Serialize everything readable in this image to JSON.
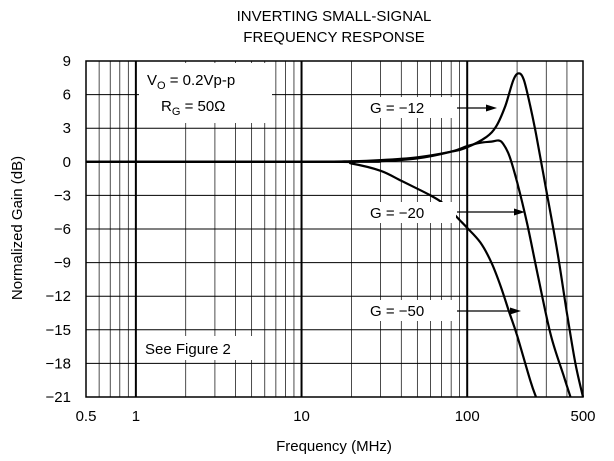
{
  "chart_data": {
    "type": "line",
    "title": [
      "INVERTING SMALL-SIGNAL",
      "FREQUENCY RESPONSE"
    ],
    "xlabel": "Frequency (MHz)",
    "ylabel": "Normalized Gain (dB)",
    "x_scale": "log",
    "xlim": [
      0.5,
      500
    ],
    "ylim": [
      -21,
      9
    ],
    "x_ticks": [
      0.5,
      1,
      10,
      100,
      500
    ],
    "x_tick_labels": [
      "0.5",
      "1",
      "10",
      "100",
      "500"
    ],
    "y_ticks": [
      9,
      6,
      3,
      0,
      -3,
      -6,
      -9,
      -12,
      -15,
      -18,
      -21
    ],
    "y_tick_labels": [
      "9",
      "6",
      "3",
      "0",
      "−3",
      "−6",
      "−9",
      "−12",
      "−15",
      "−18",
      "−21"
    ],
    "grid": true,
    "annotations": {
      "vo_main": "V",
      "vo_sub": "O",
      "vo_rest": " = 0.2Vp-p",
      "rg_main": "R",
      "rg_sub": "G",
      "rg_rest": " = 50Ω",
      "see_figure": "See Figure 2"
    },
    "series": [
      {
        "label": "G = −12",
        "points": [
          [
            0.5,
            0
          ],
          [
            10,
            0
          ],
          [
            20,
            0.05
          ],
          [
            30,
            0.15
          ],
          [
            50,
            0.4
          ],
          [
            80,
            0.9
          ],
          [
            100,
            1.3
          ],
          [
            130,
            2.2
          ],
          [
            150,
            3.2
          ],
          [
            170,
            5.0
          ],
          [
            190,
            7.3
          ],
          [
            205,
            7.9
          ],
          [
            220,
            7.3
          ],
          [
            240,
            5.0
          ],
          [
            260,
            2.5
          ],
          [
            300,
            -2.5
          ],
          [
            350,
            -8
          ],
          [
            400,
            -13.5
          ],
          [
            450,
            -18
          ],
          [
            500,
            -21
          ]
        ]
      },
      {
        "label": "G = −20",
        "points": [
          [
            0.5,
            0
          ],
          [
            20,
            0
          ],
          [
            30,
            0.05
          ],
          [
            50,
            0.3
          ],
          [
            80,
            0.9
          ],
          [
            100,
            1.4
          ],
          [
            120,
            1.7
          ],
          [
            140,
            1.8
          ],
          [
            155,
            1.9
          ],
          [
            165,
            1.6
          ],
          [
            180,
            0.5
          ],
          [
            200,
            -1.8
          ],
          [
            230,
            -5.5
          ],
          [
            270,
            -10.5
          ],
          [
            320,
            -15.5
          ],
          [
            380,
            -19
          ],
          [
            420,
            -21
          ]
        ]
      },
      {
        "label": "G = −50",
        "points": [
          [
            0.5,
            0
          ],
          [
            15,
            0
          ],
          [
            20,
            -0.15
          ],
          [
            30,
            -0.8
          ],
          [
            40,
            -1.7
          ],
          [
            50,
            -2.4
          ],
          [
            60,
            -3.0
          ],
          [
            70,
            -3.6
          ],
          [
            80,
            -4.4
          ],
          [
            90,
            -5.2
          ],
          [
            100,
            -5.9
          ],
          [
            120,
            -7.2
          ],
          [
            140,
            -9.0
          ],
          [
            160,
            -11.2
          ],
          [
            180,
            -13.5
          ],
          [
            200,
            -15.5
          ],
          [
            240,
            -19.5
          ],
          [
            260,
            -21
          ]
        ]
      }
    ]
  }
}
